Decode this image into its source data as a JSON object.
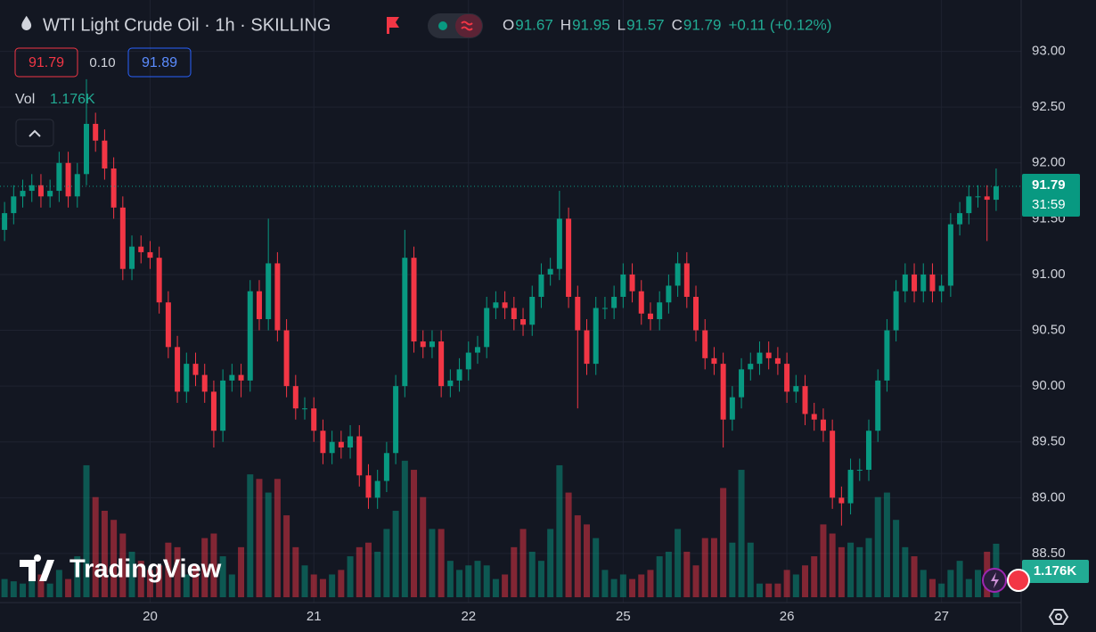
{
  "chart_data": {
    "type": "candlestick",
    "title": "WTI Light Crude Oil · 1h · SKILLING",
    "ohlc_labels": [
      "O",
      "H",
      "L",
      "C"
    ],
    "change": "+0.11 (+0.12%)",
    "bid": "91.79",
    "spread": "0.10",
    "ask": "91.89",
    "countdown": "31:59",
    "volume_title": "Vol",
    "volume_last_label": "1.176K",
    "watermark": "TradingView",
    "up_color": "#089981",
    "down_color": "#f23645",
    "volume_up_color": "rgba(8,153,129,0.5)",
    "volume_down_color": "rgba(242,54,69,0.5)",
    "grid": true,
    "ylim": [
      88.06,
      93.46
    ],
    "yticks": [
      {
        "value": 88.5,
        "label": "88.50"
      },
      {
        "value": 89,
        "label": "89.00"
      },
      {
        "value": 89.5,
        "label": "89.50"
      },
      {
        "value": 90,
        "label": "90.00"
      },
      {
        "value": 90.5,
        "label": "90.50"
      },
      {
        "value": 91,
        "label": "91.00"
      },
      {
        "value": 91.5,
        "label": "91.50"
      },
      {
        "value": 92,
        "label": "92.00"
      },
      {
        "value": 92.5,
        "label": "92.50"
      },
      {
        "value": 93,
        "label": "93.00"
      }
    ],
    "xlim": [
      -0.5,
      111.75
    ],
    "xticks": [
      {
        "value": 16,
        "label": "20"
      },
      {
        "value": 34,
        "label": "21"
      },
      {
        "value": 51,
        "label": "22"
      },
      {
        "value": 68,
        "label": "25"
      },
      {
        "value": 86,
        "label": "26"
      },
      {
        "value": 103,
        "label": "27"
      }
    ],
    "vlim": [
      0,
      3330
    ],
    "open": [
      91.4,
      91.55,
      91.7,
      91.75,
      91.8,
      91.7,
      91.75,
      92.0,
      91.7,
      91.9,
      92.35,
      92.2,
      91.95,
      91.6,
      91.05,
      91.25,
      91.2,
      91.15,
      90.75,
      90.35,
      89.95,
      90.2,
      90.1,
      89.95,
      89.6,
      90.05,
      90.1,
      90.05,
      90.85,
      90.6,
      91.1,
      90.5,
      90.0,
      89.8,
      89.8,
      89.6,
      89.4,
      89.5,
      89.45,
      89.55,
      89.2,
      89.0,
      89.15,
      89.4,
      90.0,
      91.15,
      90.4,
      90.35,
      90.4,
      90.0,
      90.05,
      90.15,
      90.3,
      90.35,
      90.7,
      90.75,
      90.7,
      90.6,
      90.55,
      90.8,
      91.0,
      91.05,
      91.5,
      90.8,
      90.5,
      90.2,
      90.7,
      90.7,
      90.8,
      91.0,
      90.85,
      90.65,
      90.6,
      90.75,
      90.9,
      91.1,
      90.8,
      90.5,
      90.25,
      90.2,
      89.7,
      89.9,
      90.15,
      90.2,
      90.3,
      90.25,
      90.2,
      89.95,
      90.0,
      89.75,
      89.7,
      89.6,
      89.0,
      88.95,
      89.25,
      89.25,
      89.6,
      90.05,
      90.5,
      90.85,
      91.0,
      90.85,
      91.0,
      90.85,
      90.9,
      91.45,
      91.55,
      91.7,
      91.7,
      91.67
    ],
    "high": [
      91.65,
      91.8,
      91.85,
      91.9,
      91.9,
      91.85,
      92.1,
      92.1,
      92.0,
      92.75,
      92.45,
      92.3,
      92.05,
      91.7,
      91.35,
      91.35,
      91.3,
      91.25,
      90.85,
      90.45,
      90.3,
      90.3,
      90.2,
      90.05,
      90.15,
      90.2,
      90.2,
      90.95,
      90.95,
      91.5,
      91.2,
      90.6,
      90.1,
      89.9,
      89.9,
      89.7,
      89.6,
      89.6,
      89.65,
      89.65,
      89.3,
      89.25,
      89.5,
      90.1,
      91.4,
      91.25,
      90.5,
      90.5,
      90.5,
      90.15,
      90.25,
      90.4,
      90.45,
      90.8,
      90.85,
      90.85,
      90.8,
      90.7,
      90.9,
      91.1,
      91.15,
      91.75,
      91.6,
      90.9,
      90.6,
      90.8,
      90.8,
      90.9,
      91.1,
      91.1,
      90.95,
      90.75,
      90.85,
      91.0,
      91.2,
      91.2,
      90.9,
      90.6,
      90.35,
      90.3,
      90.0,
      90.25,
      90.3,
      90.4,
      90.4,
      90.35,
      90.3,
      90.1,
      90.1,
      89.85,
      89.8,
      89.7,
      89.1,
      89.35,
      89.35,
      89.7,
      90.15,
      90.6,
      90.95,
      91.1,
      91.1,
      91.1,
      91.1,
      91.0,
      91.55,
      91.65,
      91.8,
      91.8,
      91.8,
      91.95
    ],
    "low": [
      91.3,
      91.45,
      91.6,
      91.65,
      91.6,
      91.6,
      91.65,
      91.6,
      91.6,
      91.8,
      92.1,
      91.85,
      91.5,
      90.95,
      90.95,
      91.1,
      91.05,
      90.65,
      90.25,
      89.85,
      89.85,
      90.0,
      89.85,
      89.45,
      89.5,
      89.95,
      89.9,
      89.95,
      90.5,
      90.5,
      90.4,
      89.9,
      89.7,
      89.7,
      89.5,
      89.3,
      89.3,
      89.35,
      89.35,
      89.1,
      88.9,
      88.9,
      89.05,
      89.3,
      89.9,
      90.3,
      90.25,
      90.25,
      89.9,
      89.9,
      89.95,
      90.05,
      90.2,
      90.25,
      90.6,
      90.6,
      90.5,
      90.45,
      90.45,
      90.7,
      90.9,
      90.95,
      90.7,
      89.8,
      90.1,
      90.1,
      90.6,
      90.6,
      90.7,
      90.75,
      90.55,
      90.5,
      90.5,
      90.65,
      90.8,
      90.7,
      90.4,
      90.15,
      90.1,
      89.45,
      89.6,
      89.8,
      90.05,
      90.1,
      90.15,
      90.1,
      89.85,
      89.85,
      89.65,
      89.6,
      89.5,
      88.9,
      88.75,
      88.85,
      89.15,
      89.15,
      89.5,
      89.95,
      90.4,
      90.75,
      90.75,
      90.75,
      90.75,
      90.75,
      90.8,
      91.35,
      91.45,
      91.6,
      91.3,
      91.57
    ],
    "close": [
      91.55,
      91.7,
      91.75,
      91.8,
      91.7,
      91.75,
      92.0,
      91.7,
      91.9,
      92.35,
      92.2,
      91.95,
      91.6,
      91.05,
      91.25,
      91.2,
      91.15,
      90.75,
      90.35,
      89.95,
      90.2,
      90.1,
      89.95,
      89.6,
      90.05,
      90.1,
      90.05,
      90.85,
      90.6,
      91.1,
      90.5,
      90.0,
      89.8,
      89.8,
      89.6,
      89.4,
      89.5,
      89.45,
      89.55,
      89.2,
      89.0,
      89.15,
      89.4,
      90.0,
      91.15,
      90.4,
      90.35,
      90.4,
      90.0,
      90.05,
      90.15,
      90.3,
      90.35,
      90.7,
      90.75,
      90.7,
      90.6,
      90.55,
      90.8,
      91.0,
      91.05,
      91.5,
      90.8,
      90.5,
      90.2,
      90.7,
      90.7,
      90.8,
      91.0,
      90.85,
      90.65,
      90.6,
      90.75,
      90.9,
      91.1,
      90.8,
      90.5,
      90.25,
      90.2,
      89.7,
      89.9,
      90.15,
      90.2,
      90.3,
      90.25,
      90.2,
      89.95,
      90.0,
      89.75,
      89.7,
      89.6,
      89.0,
      88.95,
      89.25,
      89.25,
      89.6,
      90.05,
      90.5,
      90.85,
      91.0,
      90.85,
      91.0,
      90.85,
      90.9,
      91.45,
      91.55,
      91.7,
      91.7,
      91.67,
      91.79
    ],
    "volume": [
      400,
      350,
      300,
      400,
      500,
      300,
      600,
      400,
      900,
      2900,
      2200,
      1900,
      1700,
      1400,
      1000,
      800,
      600,
      700,
      1200,
      1100,
      500,
      700,
      1300,
      1400,
      900,
      500,
      1100,
      2700,
      2600,
      2300,
      2600,
      1800,
      1100,
      700,
      500,
      400,
      500,
      600,
      900,
      1100,
      1200,
      1000,
      1500,
      1900,
      3000,
      2800,
      2200,
      1500,
      1500,
      800,
      600,
      700,
      800,
      700,
      400,
      500,
      1100,
      1500,
      1000,
      800,
      1500,
      2900,
      2300,
      1800,
      1600,
      1300,
      600,
      400,
      500,
      400,
      500,
      600,
      900,
      1000,
      1500,
      1000,
      700,
      1300,
      1300,
      2400,
      1200,
      2800,
      1200,
      300,
      300,
      300,
      600,
      500,
      700,
      900,
      1600,
      1400,
      1100,
      1200,
      1100,
      1300,
      2200,
      2300,
      1700,
      1100,
      900,
      600,
      400,
      300,
      600,
      800,
      400,
      600,
      1000,
      1176
    ]
  }
}
